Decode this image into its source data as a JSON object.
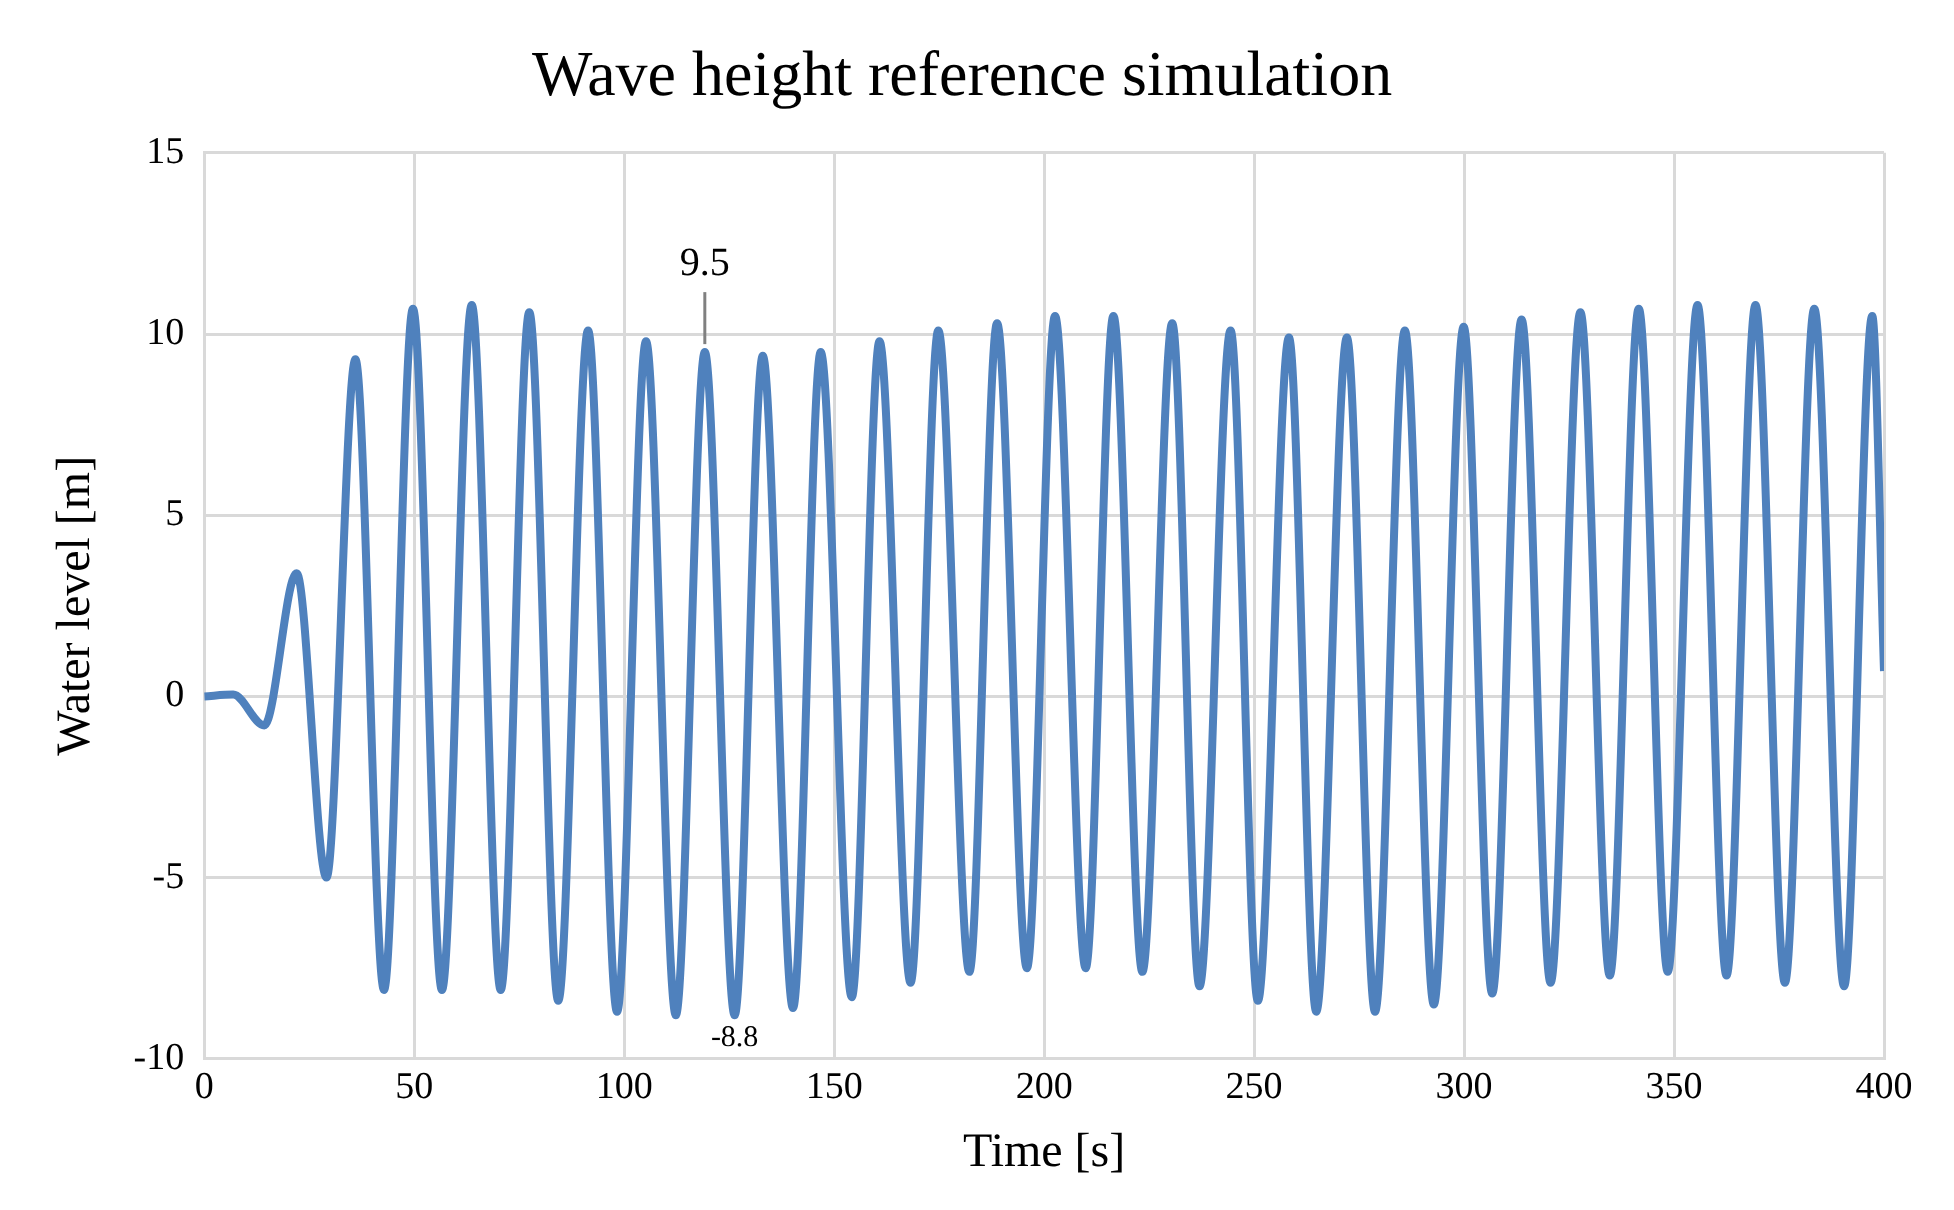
{
  "chart_data": {
    "type": "line",
    "title": "Wave height reference simulation",
    "xlabel": "Time [s]",
    "ylabel": "Water level [m]",
    "xlim": [
      0,
      400
    ],
    "xticks": [
      0,
      50,
      100,
      150,
      200,
      250,
      300,
      350,
      400
    ],
    "ylim": [
      -10,
      15
    ],
    "yticks": [
      -10,
      -5,
      0,
      5,
      10,
      15
    ],
    "grid": true,
    "legend": false,
    "marker": "none",
    "line_style": "solid",
    "annotations": [
      {
        "text": "9.5",
        "x": 119.2,
        "y": 9.5
      },
      {
        "text": "-8.8",
        "x": 126.3,
        "y": -8.8
      }
    ],
    "series": [
      {
        "color": "#4f81bd",
        "x": [
          0,
          6.9,
          14.3,
          22,
          29.1,
          36,
          42.8,
          49.7,
          56.6,
          63.7,
          70.6,
          77.4,
          84.3,
          91.4,
          98.3,
          105.2,
          112.3,
          119.2,
          126.3,
          133,
          140.2,
          146.8,
          154.2,
          160.8,
          168.2,
          174.8,
          182.2,
          188.8,
          195.9,
          202.6,
          209.9,
          216.5,
          223.4,
          230.5,
          237,
          244.4,
          250.9,
          258.3,
          264.8,
          272.1,
          278.8,
          285.9,
          292.8,
          299.9,
          306.7,
          313.7,
          320.6,
          327.7,
          334.7,
          341.6,
          348.5,
          355.6,
          362.5,
          369.4,
          376.4,
          383.4,
          390.5,
          397.2,
          400
        ],
        "values": [
          0,
          0.05,
          -0.8,
          3.4,
          -5.0,
          9.3,
          -8.1,
          10.7,
          -8.1,
          10.8,
          -8.1,
          10.6,
          -8.4,
          10.1,
          -8.7,
          9.8,
          -8.8,
          9.5,
          -8.8,
          9.4,
          -8.6,
          9.5,
          -8.3,
          9.8,
          -7.9,
          10.1,
          -7.6,
          10.3,
          -7.5,
          10.5,
          -7.5,
          10.5,
          -7.6,
          10.3,
          -8.0,
          10.1,
          -8.4,
          9.9,
          -8.7,
          9.9,
          -8.7,
          10.1,
          -8.5,
          10.2,
          -8.2,
          10.4,
          -7.9,
          10.6,
          -7.7,
          10.7,
          -7.6,
          10.8,
          -7.7,
          10.8,
          -7.9,
          10.7,
          -8.0,
          10.5,
          0.7
        ]
      }
    ]
  }
}
